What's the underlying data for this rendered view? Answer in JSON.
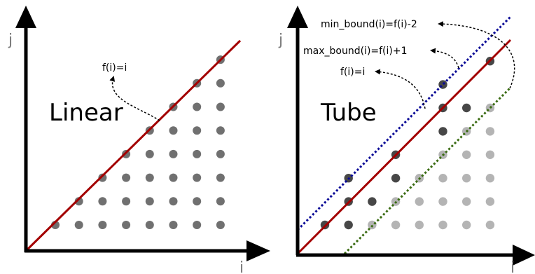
{
  "colors": {
    "axis": "#000000",
    "dot_dark": "#474747",
    "dot_mid": "#707070",
    "dot_light": "#b4b4b4",
    "identity_line": "#a30000",
    "min_bound_line": "#0a0a96",
    "max_bound_line": "#3a6b12",
    "annotation_arrow": "#000000"
  },
  "panels": [
    {
      "name": "linear",
      "axis_x_label": "i",
      "axis_y_label": "j",
      "title": "Linear",
      "annotations": [
        {
          "name": "identity",
          "label": "f(i)=i"
        }
      ],
      "grid": {
        "rows": 8,
        "cols": 8
      },
      "dots": [
        [
          0,
          0,
          "mid"
        ],
        [
          1,
          0,
          "mid"
        ],
        [
          2,
          0,
          "mid"
        ],
        [
          3,
          0,
          "mid"
        ],
        [
          4,
          0,
          "mid"
        ],
        [
          5,
          0,
          "mid"
        ],
        [
          6,
          0,
          "mid"
        ],
        [
          7,
          0,
          "mid"
        ],
        [
          1,
          1,
          "mid"
        ],
        [
          2,
          1,
          "mid"
        ],
        [
          3,
          1,
          "mid"
        ],
        [
          4,
          1,
          "mid"
        ],
        [
          5,
          1,
          "mid"
        ],
        [
          6,
          1,
          "mid"
        ],
        [
          7,
          1,
          "mid"
        ],
        [
          2,
          2,
          "mid"
        ],
        [
          3,
          2,
          "mid"
        ],
        [
          4,
          2,
          "mid"
        ],
        [
          5,
          2,
          "mid"
        ],
        [
          6,
          2,
          "mid"
        ],
        [
          7,
          2,
          "mid"
        ],
        [
          3,
          3,
          "mid"
        ],
        [
          4,
          3,
          "mid"
        ],
        [
          5,
          3,
          "mid"
        ],
        [
          6,
          3,
          "mid"
        ],
        [
          7,
          3,
          "mid"
        ],
        [
          4,
          4,
          "mid"
        ],
        [
          5,
          4,
          "mid"
        ],
        [
          6,
          4,
          "mid"
        ],
        [
          7,
          4,
          "mid"
        ],
        [
          5,
          5,
          "mid"
        ],
        [
          6,
          5,
          "mid"
        ],
        [
          7,
          5,
          "mid"
        ],
        [
          6,
          6,
          "mid"
        ],
        [
          7,
          6,
          "mid"
        ],
        [
          7,
          7,
          "mid"
        ]
      ]
    },
    {
      "name": "tube",
      "axis_x_label": "i",
      "axis_y_label": "j",
      "title": "Tube",
      "annotations": [
        {
          "name": "min-bound",
          "label": "min_bound(i)=f(i)-2"
        },
        {
          "name": "max-bound",
          "label": "max_bound(i)=f(i)+1"
        },
        {
          "name": "identity",
          "label": "f(i)=i"
        }
      ],
      "grid": {
        "rows": 8,
        "cols": 8
      },
      "dots": [
        [
          0,
          0,
          "dark"
        ],
        [
          1,
          0,
          "dark"
        ],
        [
          2,
          0,
          "light"
        ],
        [
          3,
          0,
          "light"
        ],
        [
          4,
          0,
          "light"
        ],
        [
          5,
          0,
          "light"
        ],
        [
          6,
          0,
          "light"
        ],
        [
          7,
          0,
          "light"
        ],
        [
          1,
          1,
          "dark"
        ],
        [
          2,
          1,
          "dark"
        ],
        [
          3,
          1,
          "light"
        ],
        [
          4,
          1,
          "light"
        ],
        [
          5,
          1,
          "light"
        ],
        [
          6,
          1,
          "light"
        ],
        [
          7,
          1,
          "light"
        ],
        [
          1,
          2,
          "dark"
        ],
        [
          3,
          2,
          "dark"
        ],
        [
          4,
          2,
          "light"
        ],
        [
          5,
          2,
          "light"
        ],
        [
          6,
          2,
          "light"
        ],
        [
          7,
          2,
          "light"
        ],
        [
          3,
          3,
          "dark"
        ],
        [
          5,
          3,
          "light"
        ],
        [
          6,
          3,
          "light"
        ],
        [
          7,
          3,
          "light"
        ],
        [
          5,
          4,
          "dark"
        ],
        [
          6,
          4,
          "light"
        ],
        [
          7,
          4,
          "light"
        ],
        [
          5,
          5,
          "dark"
        ],
        [
          6,
          5,
          "dark"
        ],
        [
          7,
          5,
          "light"
        ],
        [
          5,
          6,
          "dark"
        ],
        [
          7,
          7,
          "dark"
        ]
      ]
    }
  ]
}
